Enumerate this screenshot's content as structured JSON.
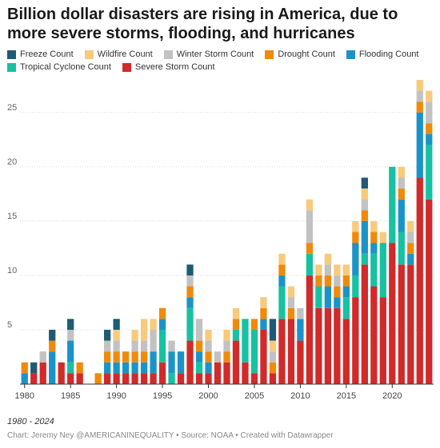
{
  "chart_data": {
    "type": "bar",
    "stacked": true,
    "title": "Billion dollar disasters are rising in America, due to more severe storms, flooding, and hurricanes",
    "subtitle": "1980 - 2024",
    "credits": "Chart: Jeremy Ney @AMERICANINEQUALITY • Source: NOAA • Created with Datawrapper",
    "xlabel": "",
    "ylabel": "",
    "ylim": [
      0,
      28
    ],
    "y_ticks": [
      5,
      10,
      15,
      20,
      25
    ],
    "x_ticks": [
      1980,
      1985,
      1990,
      1995,
      2000,
      2005,
      2010,
      2015,
      2020
    ],
    "grid": true,
    "legend_position": "top",
    "categories": [
      1980,
      1981,
      1982,
      1983,
      1984,
      1985,
      1986,
      1987,
      1988,
      1989,
      1990,
      1991,
      1992,
      1993,
      1994,
      1995,
      1996,
      1997,
      1998,
      1999,
      2000,
      2001,
      2002,
      2003,
      2004,
      2005,
      2006,
      2007,
      2008,
      2009,
      2010,
      2011,
      2012,
      2013,
      2014,
      2015,
      2016,
      2017,
      2018,
      2019,
      2020,
      2021,
      2022,
      2023,
      2024
    ],
    "series": [
      {
        "name": "Severe Storm Count",
        "color": "#d12a2a",
        "values": [
          0,
          1,
          2,
          0,
          2,
          1,
          1,
          0,
          0,
          1,
          1,
          1,
          1,
          1,
          1,
          2,
          0,
          1,
          4,
          1,
          1,
          2,
          2,
          4,
          2,
          1,
          5,
          1,
          6,
          6,
          4,
          10,
          7,
          7,
          7,
          6,
          8,
          11,
          9,
          8,
          13,
          11,
          11,
          19,
          17
        ]
      },
      {
        "name": "Tropical Cyclone Count",
        "color": "#17c1a2",
        "values": [
          0,
          0,
          0,
          0,
          0,
          1,
          0,
          0,
          0,
          0,
          0,
          0,
          0,
          0,
          0,
          3,
          1,
          0,
          3,
          1,
          0,
          0,
          0,
          1,
          4,
          4,
          0,
          0,
          3,
          0,
          0,
          2,
          2,
          0,
          0,
          2,
          2,
          1,
          3,
          5,
          7,
          3,
          0,
          0,
          5
        ]
      },
      {
        "name": "Flooding Count",
        "color": "#1b93c9",
        "values": [
          1,
          0,
          0,
          3,
          0,
          2,
          0,
          0,
          0,
          1,
          1,
          1,
          1,
          1,
          2,
          1,
          2,
          2,
          1,
          1,
          1,
          0,
          0,
          0,
          0,
          0,
          1,
          0,
          1,
          0,
          2,
          0,
          0,
          2,
          1,
          1,
          3,
          3,
          1,
          0,
          0,
          3,
          1,
          6,
          1
        ]
      },
      {
        "name": "Drought Count",
        "color": "#f08a0b",
        "values": [
          1,
          0,
          0,
          1,
          0,
          0,
          1,
          0,
          1,
          1,
          1,
          1,
          1,
          1,
          0,
          1,
          0,
          0,
          1,
          1,
          1,
          0,
          1,
          1,
          0,
          1,
          1,
          1,
          1,
          1,
          0,
          1,
          1,
          1,
          1,
          1,
          1,
          1,
          1,
          0,
          0,
          1,
          1,
          1,
          1
        ]
      },
      {
        "name": "Winter Storm Count",
        "color": "#c2c2c2",
        "values": [
          0,
          0,
          1,
          0,
          0,
          1,
          0,
          0,
          0,
          1,
          1,
          0,
          1,
          1,
          2,
          0,
          1,
          0,
          1,
          2,
          1,
          1,
          1,
          0,
          0,
          0,
          0,
          1,
          0,
          1,
          1,
          3,
          0,
          1,
          1,
          0,
          0,
          1,
          0,
          0,
          0,
          1,
          1,
          1,
          2
        ]
      },
      {
        "name": "Wildfire Count",
        "color": "#f8ca7b",
        "values": [
          0,
          0,
          0,
          0,
          0,
          0,
          0,
          0,
          0,
          0,
          1,
          0,
          1,
          2,
          1,
          0,
          0,
          0,
          0,
          0,
          1,
          0,
          1,
          1,
          0,
          0,
          1,
          1,
          1,
          1,
          0,
          1,
          1,
          1,
          1,
          1,
          1,
          1,
          1,
          1,
          0,
          1,
          1,
          1,
          1
        ]
      },
      {
        "name": "Freeze Count",
        "color": "#1f5b73",
        "values": [
          0,
          1,
          0,
          1,
          0,
          1,
          0,
          0,
          0,
          1,
          1,
          0,
          0,
          0,
          0,
          0,
          0,
          0,
          1,
          0,
          0,
          0,
          0,
          0,
          0,
          0,
          0,
          2,
          0,
          0,
          0,
          0,
          0,
          0,
          0,
          0,
          0,
          1,
          0,
          0,
          0,
          0,
          0,
          0,
          0
        ]
      }
    ],
    "legend_order": [
      "Freeze Count",
      "Wildfire Count",
      "Winter Storm Count",
      "Drought Count",
      "Flooding Count",
      "Tropical Cyclone Count",
      "Severe Storm Count"
    ]
  }
}
